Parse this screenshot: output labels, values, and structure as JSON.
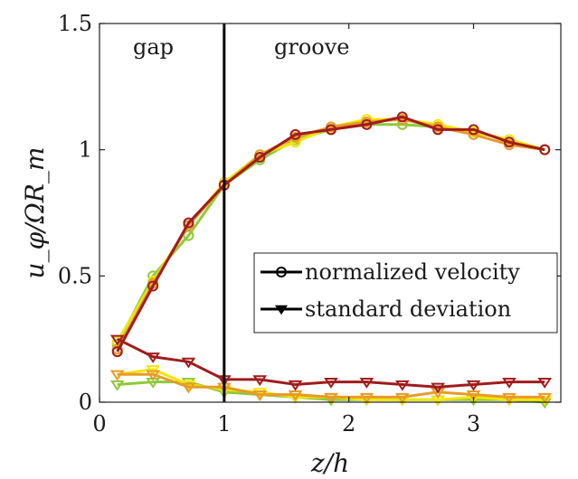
{
  "chart_data": {
    "type": "line",
    "xlabel": "z/h",
    "ylabel": "u_φ/ΩR_m",
    "xlim": [
      0,
      3.7
    ],
    "ylim": [
      0,
      1.5
    ],
    "xticks": [
      "0",
      "1",
      "2",
      "3"
    ],
    "yticks": [
      "0",
      "0.5",
      "1",
      "1.5"
    ],
    "grid": false,
    "legend_position": "right-middle",
    "legend": [
      "normalized velocity",
      "standard deviation"
    ],
    "annotations": {
      "gap": "gap",
      "groove": "groove",
      "divider_x": 1.0
    },
    "x": [
      0.143,
      0.429,
      0.714,
      1.0,
      1.286,
      1.571,
      1.857,
      2.143,
      2.429,
      2.714,
      3.0,
      3.286,
      3.571
    ],
    "series": [
      {
        "kind": "velocity",
        "color": "#8fc93a",
        "values": [
          0.23,
          0.5,
          0.66,
          0.86,
          0.96,
          1.04,
          1.08,
          1.1,
          1.1,
          1.09,
          1.07,
          1.04,
          1.0
        ]
      },
      {
        "kind": "velocity",
        "color": "#f2e600",
        "values": [
          0.24,
          0.48,
          0.7,
          0.87,
          0.98,
          1.03,
          1.09,
          1.12,
          1.12,
          1.1,
          1.07,
          1.04,
          1.0
        ]
      },
      {
        "kind": "velocity",
        "color": "#e89a2a",
        "values": [
          0.21,
          0.47,
          0.7,
          0.86,
          0.98,
          1.05,
          1.09,
          1.11,
          1.12,
          1.09,
          1.06,
          1.02,
          1.0
        ]
      },
      {
        "kind": "velocity",
        "color": "#a01c1c",
        "values": [
          0.2,
          0.46,
          0.71,
          0.86,
          0.97,
          1.06,
          1.08,
          1.1,
          1.13,
          1.08,
          1.08,
          1.03,
          1.0
        ]
      },
      {
        "kind": "std",
        "color": "#8fc93a",
        "values": [
          0.07,
          0.08,
          0.08,
          0.04,
          0.03,
          0.02,
          0.01,
          0.01,
          0.01,
          0.01,
          0.01,
          0.01,
          0.0
        ]
      },
      {
        "kind": "std",
        "color": "#f2e600",
        "values": [
          0.11,
          0.13,
          0.07,
          0.05,
          0.04,
          0.02,
          0.02,
          0.01,
          0.01,
          0.01,
          0.02,
          0.01,
          0.01
        ]
      },
      {
        "kind": "std",
        "color": "#e89a2a",
        "values": [
          0.11,
          0.11,
          0.06,
          0.06,
          0.03,
          0.03,
          0.02,
          0.02,
          0.02,
          0.04,
          0.03,
          0.02,
          0.02
        ]
      },
      {
        "kind": "std",
        "color": "#a01c1c",
        "values": [
          0.25,
          0.18,
          0.16,
          0.09,
          0.09,
          0.07,
          0.08,
          0.08,
          0.07,
          0.06,
          0.07,
          0.08,
          0.08
        ]
      }
    ]
  }
}
